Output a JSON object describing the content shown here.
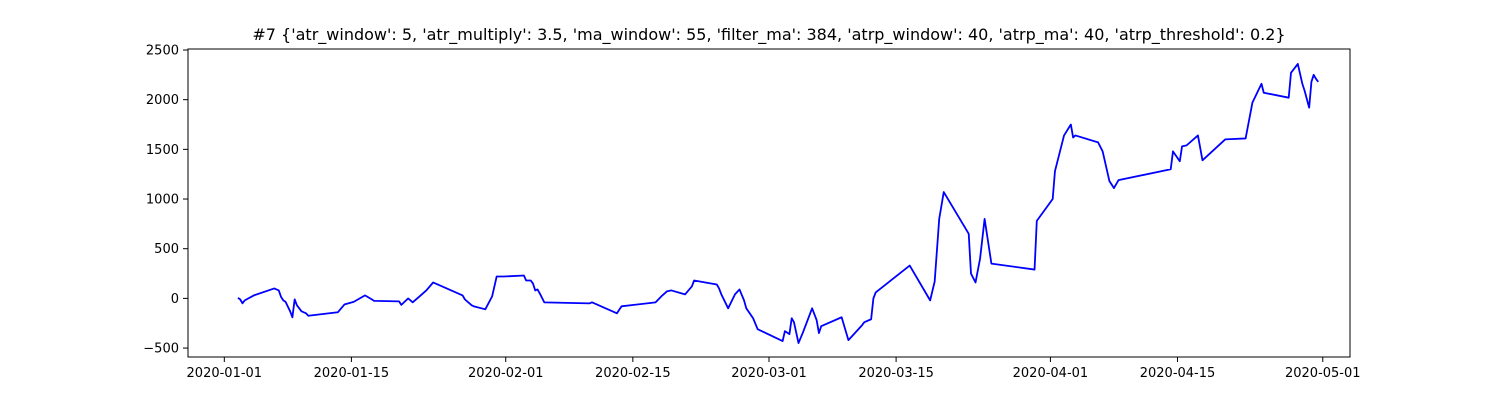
{
  "chart_data": {
    "type": "line",
    "title": "#7 {'atr_window': 5, 'atr_multiply': 3.5, 'ma_window': 55, 'filter_ma': 384, 'atrp_window': 40, 'atrp_ma': 40, 'atrp_threshold': 0.2}",
    "xlabel": "",
    "ylabel": "",
    "grid": false,
    "legend": "none",
    "xlim": [
      "2019-12-28",
      "2020-05-04"
    ],
    "ylim": [
      -590,
      2510
    ],
    "xticks": [
      {
        "date": "2020-01-01",
        "label": "2020-01-01"
      },
      {
        "date": "2020-01-15",
        "label": "2020-01-15"
      },
      {
        "date": "2020-02-01",
        "label": "2020-02-01"
      },
      {
        "date": "2020-02-15",
        "label": "2020-02-15"
      },
      {
        "date": "2020-03-01",
        "label": "2020-03-01"
      },
      {
        "date": "2020-03-15",
        "label": "2020-03-15"
      },
      {
        "date": "2020-04-01",
        "label": "2020-04-01"
      },
      {
        "date": "2020-04-15",
        "label": "2020-04-15"
      },
      {
        "date": "2020-05-01",
        "label": "2020-05-01"
      }
    ],
    "yticks": [
      {
        "value": -500,
        "label": "−500"
      },
      {
        "value": 0,
        "label": "0"
      },
      {
        "value": 500,
        "label": "500"
      },
      {
        "value": 1000,
        "label": "1000"
      },
      {
        "value": 1500,
        "label": "1500"
      },
      {
        "value": 2000,
        "label": "2000"
      },
      {
        "value": 2500,
        "label": "2500"
      }
    ],
    "series": [
      {
        "color": "#0000ff",
        "x": [
          "2020-01-02T12:00",
          "2020-01-02T18:00",
          "2020-01-03T00:00",
          "2020-01-03T06:00",
          "2020-01-04T06:00",
          "2020-01-06T12:00",
          "2020-01-07T00:00",
          "2020-01-07T06:00",
          "2020-01-07T12:00",
          "2020-01-07T18:00",
          "2020-01-08T06:00",
          "2020-01-08T12:00",
          "2020-01-08T18:00",
          "2020-01-09T00:00",
          "2020-01-09T12:00",
          "2020-01-10T00:00",
          "2020-01-10T06:00",
          "2020-01-13T12:00",
          "2020-01-14T06:00",
          "2020-01-15T06:00",
          "2020-01-16T12:00",
          "2020-01-17T06:00",
          "2020-01-17T12:00",
          "2020-01-20T06:00",
          "2020-01-20T12:00",
          "2020-01-21T06:00",
          "2020-01-21T18:00",
          "2020-01-22T12:00",
          "2020-01-23T06:00",
          "2020-01-24T00:00",
          "2020-01-24T12:00",
          "2020-01-27T06:00",
          "2020-01-27T12:00",
          "2020-01-28T06:00",
          "2020-01-28T12:00",
          "2020-01-29T18:00",
          "2020-01-30T12:00",
          "2020-01-31T00:00",
          "2020-01-31T18:00",
          "2020-02-03T00:00",
          "2020-02-03T06:00",
          "2020-02-03T18:00",
          "2020-02-04T00:00",
          "2020-02-04T06:00",
          "2020-02-04T12:00",
          "2020-02-04T18:00",
          "2020-02-05T06:00",
          "2020-02-10T06:00",
          "2020-02-10T12:00",
          "2020-02-12T12:00",
          "2020-02-13T06:00",
          "2020-02-13T18:00",
          "2020-02-17T12:00",
          "2020-02-18T06:00",
          "2020-02-18T18:00",
          "2020-02-19T06:00",
          "2020-02-20T18:00",
          "2020-02-21T12:00",
          "2020-02-21T18:00",
          "2020-02-24T06:00",
          "2020-02-24T12:00",
          "2020-02-24T18:00",
          "2020-02-25T12:00",
          "2020-02-26T06:00",
          "2020-02-26T18:00",
          "2020-02-27T06:00",
          "2020-02-27T12:00",
          "2020-02-28T06:00",
          "2020-02-28T18:00",
          "2020-03-02T12:00",
          "2020-03-02T18:00",
          "2020-03-03T06:00",
          "2020-03-03T12:00",
          "2020-03-03T18:00",
          "2020-03-04T06:00",
          "2020-03-04T18:00",
          "2020-03-05T18:00",
          "2020-03-06T06:00",
          "2020-03-06T12:00",
          "2020-03-06T18:00",
          "2020-03-09T00:00",
          "2020-03-09T18:00",
          "2020-03-11T06:00",
          "2020-03-11T12:00",
          "2020-03-12T06:00",
          "2020-03-12T12:00",
          "2020-03-12T18:00",
          "2020-03-16T12:00",
          "2020-03-18T18:00",
          "2020-03-19T06:00",
          "2020-03-19T18:00",
          "2020-03-20T06:00",
          "2020-03-23T00:00",
          "2020-03-23T06:00",
          "2020-03-23T18:00",
          "2020-03-24T06:00",
          "2020-03-24T18:00",
          "2020-03-25T12:00",
          "2020-03-30T06:00",
          "2020-03-30T12:00",
          "2020-04-01T06:00",
          "2020-04-01T12:00",
          "2020-04-02T12:00",
          "2020-04-03T06:00",
          "2020-04-03T12:00",
          "2020-04-03T18:00",
          "2020-04-06T06:00",
          "2020-04-06T18:00",
          "2020-04-07T06:00",
          "2020-04-07T12:00",
          "2020-04-08T00:00",
          "2020-04-08T12:00",
          "2020-04-14T06:00",
          "2020-04-14T12:00",
          "2020-04-15T06:00",
          "2020-04-15T12:00",
          "2020-04-16T00:00",
          "2020-04-17T06:00",
          "2020-04-17T18:00",
          "2020-04-20T06:00",
          "2020-04-22T12:00",
          "2020-04-23T06:00",
          "2020-04-24T06:00",
          "2020-04-24T12:00",
          "2020-04-27T06:00",
          "2020-04-27T12:00",
          "2020-04-28T06:00",
          "2020-04-28T12:00",
          "2020-04-28T18:00",
          "2020-04-29T00:00",
          "2020-04-29T12:00",
          "2020-04-29T18:00",
          "2020-04-30T00:00",
          "2020-04-30T06:00",
          "2020-04-30T12:00"
        ],
        "y": [
          5,
          -10,
          -50,
          -20,
          30,
          100,
          80,
          15,
          -20,
          -35,
          -130,
          -190,
          -10,
          -70,
          -130,
          -150,
          -175,
          -140,
          -60,
          -35,
          30,
          -10,
          -25,
          -30,
          -65,
          0,
          -40,
          20,
          80,
          160,
          140,
          30,
          -10,
          -70,
          -80,
          -110,
          20,
          220,
          220,
          230,
          180,
          180,
          150,
          80,
          90,
          50,
          -40,
          -50,
          -40,
          -120,
          -150,
          -80,
          -40,
          30,
          70,
          80,
          40,
          120,
          180,
          140,
          100,
          40,
          -100,
          40,
          90,
          -20,
          -100,
          -200,
          -310,
          -430,
          -330,
          -360,
          -200,
          -240,
          -450,
          -340,
          -100,
          -220,
          -350,
          -280,
          -190,
          -420,
          -270,
          -240,
          -210,
          0,
          60,
          330,
          -20,
          170,
          800,
          1070,
          650,
          250,
          160,
          400,
          800,
          350,
          290,
          780,
          1000,
          1280,
          1640,
          1750,
          1620,
          1640,
          1570,
          1480,
          1280,
          1180,
          1110,
          1190,
          1300,
          1480,
          1380,
          1530,
          1540,
          1640,
          1390,
          1600,
          1610,
          1970,
          2160,
          2070,
          2020,
          2270,
          2360,
          2260,
          2160,
          2090,
          1920,
          2180,
          2250,
          2210,
          2180
        ]
      }
    ]
  }
}
